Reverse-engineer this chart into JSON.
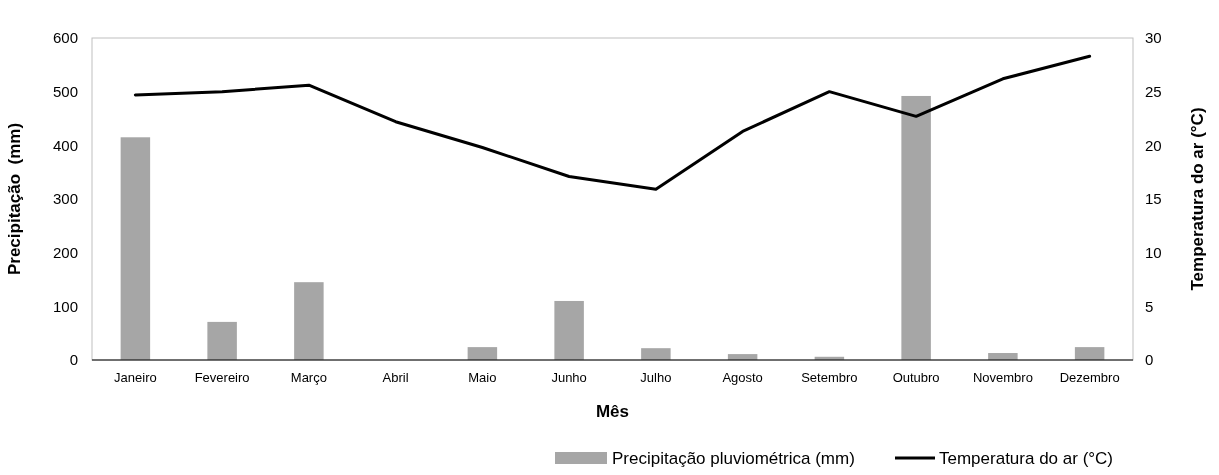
{
  "chart_data": {
    "type": "bar",
    "xlabel": "Mês",
    "ylabel": "Precipitação  (mm)",
    "y2label": "Temperatura do ar (°C)",
    "categories": [
      "Janeiro",
      "Fevereiro",
      "Março",
      "Abril",
      "Maio",
      "Junho",
      "Julho",
      "Agosto",
      "Setembro",
      "Outubro",
      "Novembro",
      "Dezembro"
    ],
    "series": [
      {
        "name": "Precipitação pluviométrica (mm)",
        "color": "#a6a6a6",
        "values": [
          415,
          71,
          145,
          0,
          24,
          110,
          22,
          11,
          6,
          492,
          13,
          24
        ]
      },
      {
        "name": "Temperatura do ar (°C)",
        "type": "line",
        "axis": "y2",
        "color": "#000000",
        "values": [
          24.7,
          25.0,
          25.6,
          22.2,
          19.8,
          17.1,
          15.9,
          21.3,
          25.0,
          22.7,
          26.2,
          28.3
        ]
      }
    ],
    "ylim": [
      0,
      600
    ],
    "yticks": [
      0,
      100,
      200,
      300,
      400,
      500,
      600
    ],
    "y2lim": [
      0,
      30
    ],
    "y2ticks": [
      0,
      5,
      10,
      15,
      20,
      25,
      30
    ],
    "grid": false,
    "legend": "bottom right",
    "marker": "none",
    "line_style": "solid"
  }
}
